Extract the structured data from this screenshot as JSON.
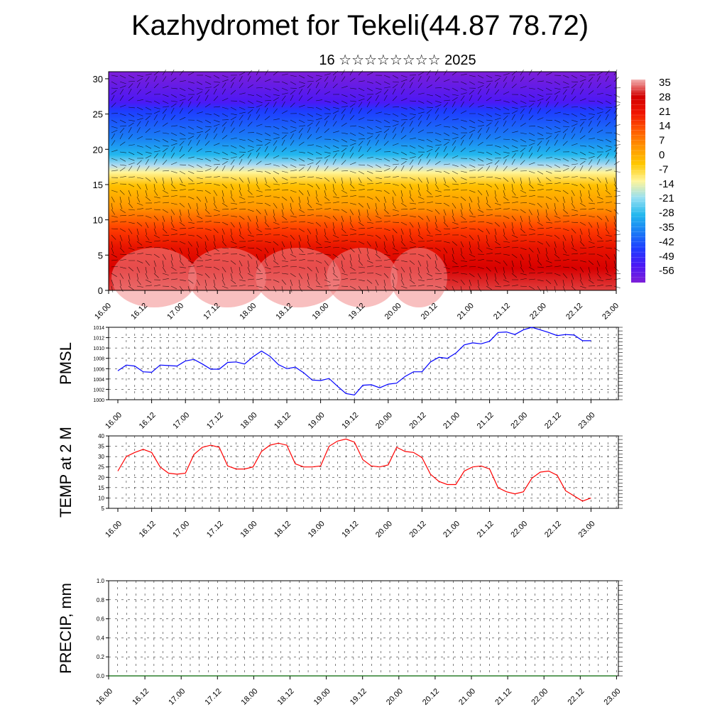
{
  "header": {
    "title": "Kazhydromet for Tekeli(44.87 78.72)",
    "subtitle": "16 ☆☆☆☆☆☆☆☆ 2025"
  },
  "colors": {
    "pmsl_line": "#0000ff",
    "temp_line": "#ff0000",
    "precip_line": "#006400",
    "colorbar": [
      "#7d1fd8",
      "#4b18f5",
      "#1e3cff",
      "#1a7df5",
      "#22b8ee",
      "#96dff2",
      "#fff59a",
      "#ffc800",
      "#ff9600",
      "#ff5a00",
      "#f01400",
      "#d20000",
      "#f2b0b0"
    ]
  },
  "chart_data": [
    {
      "type": "heatmap",
      "name": "temperature-wind-cross-section",
      "x_tick_labels": [
        "16.00",
        "16.12",
        "17.00",
        "17.12",
        "18.00",
        "18.12",
        "19.00",
        "19.12",
        "20.00",
        "20.12",
        "21.00",
        "21.12",
        "22.00",
        "22.12",
        "23.00"
      ],
      "y_ticks": [
        0,
        5,
        10,
        15,
        20,
        25,
        30
      ],
      "ylim": [
        0,
        31
      ],
      "colorbar_labels": [
        "35",
        "28",
        "21",
        "14",
        "7",
        "0",
        "-7",
        "-14",
        "-21",
        "-28",
        "-35",
        "-42",
        "-49",
        "-56"
      ],
      "has_wind_barbs": true
    },
    {
      "type": "line",
      "name": "pmsl",
      "ylabel": "PMSL",
      "ylim": [
        1000,
        1014
      ],
      "y_ticks": [
        1000,
        1002,
        1004,
        1006,
        1008,
        1010,
        1012,
        1014
      ],
      "x_tick_labels": [
        "16.00",
        "16.12",
        "17.00",
        "17.12",
        "18.00",
        "18.12",
        "19.00",
        "19.12",
        "20.00",
        "20.12",
        "21.00",
        "21.12",
        "22.00",
        "22.12",
        "23.00"
      ],
      "x_step_hours": 3,
      "values": [
        1005.6,
        1006.7,
        1006.5,
        1005.4,
        1005.3,
        1006.7,
        1006.6,
        1006.5,
        1007.5,
        1007.8,
        1006.9,
        1005.9,
        1005.9,
        1007.2,
        1007.3,
        1006.9,
        1008.3,
        1009.4,
        1008.4,
        1006.8,
        1006.0,
        1006.3,
        1005.2,
        1003.8,
        1003.7,
        1004.1,
        1002.6,
        1001.2,
        1000.9,
        1002.8,
        1002.9,
        1002.3,
        1003.0,
        1003.2,
        1004.5,
        1005.4,
        1005.4,
        1007.3,
        1008.2,
        1008.0,
        1009.0,
        1010.6,
        1011.0,
        1010.8,
        1011.3,
        1013.0,
        1013.1,
        1012.6,
        1013.5,
        1014.0,
        1013.5,
        1013.0,
        1012.4,
        1012.6,
        1012.5,
        1011.4,
        1011.4
      ],
      "grid": true
    },
    {
      "type": "line",
      "name": "temp-2m",
      "ylabel": "TEMP at 2 M",
      "ylim": [
        5,
        40
      ],
      "y_ticks": [
        5,
        10,
        15,
        20,
        25,
        30,
        35,
        40
      ],
      "x_tick_labels": [
        "16.00",
        "16.12",
        "17.00",
        "17.12",
        "18.00",
        "18.12",
        "19.00",
        "19.12",
        "20.00",
        "20.12",
        "21.00",
        "21.12",
        "22.00",
        "22.12",
        "23.00"
      ],
      "x_step_hours": 3,
      "values": [
        23,
        30,
        32,
        33.5,
        32,
        25,
        22,
        21.5,
        22,
        31,
        34.5,
        35.5,
        34.5,
        25.5,
        24,
        24,
        25,
        32.5,
        35.5,
        36.5,
        35.5,
        26.5,
        25,
        25,
        25.5,
        35,
        37.5,
        38.5,
        37,
        28.5,
        25.5,
        25,
        26,
        34.5,
        32.5,
        32,
        29.5,
        21.5,
        18,
        16.5,
        16.5,
        23,
        25,
        25.5,
        24,
        15,
        13,
        12,
        13,
        19.5,
        22.5,
        23,
        21,
        13.5,
        11,
        8.5,
        10
      ],
      "grid": true
    },
    {
      "type": "line",
      "name": "precip",
      "ylabel": "PRECIP, mm",
      "ylim": [
        0,
        1.0
      ],
      "y_ticks": [
        0.0,
        0.2,
        0.4,
        0.6,
        0.8,
        1.0
      ],
      "y_tick_labels": [
        "0.0",
        "0.2",
        "0.4",
        "0.6",
        "0.8",
        "1.0"
      ],
      "x_tick_labels": [
        "16.00",
        "16.12",
        "17.00",
        "17.12",
        "18.00",
        "18.12",
        "19.00",
        "19.12",
        "20.00",
        "20.12",
        "21.00",
        "21.12",
        "22.00",
        "22.12",
        "23.00"
      ],
      "values": [
        0,
        0,
        0,
        0,
        0,
        0,
        0,
        0,
        0,
        0,
        0,
        0,
        0,
        0,
        0
      ],
      "grid": true
    }
  ]
}
